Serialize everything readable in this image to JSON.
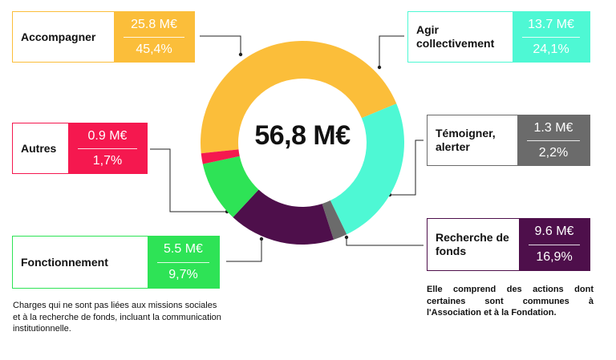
{
  "chart_data": {
    "type": "pie",
    "total_label": "56,8 M€",
    "slices": [
      {
        "name": "Accompagner",
        "amount_label": "25.8 M€",
        "percent_label": "45,4%",
        "percent": 45.4,
        "color": "#FBBE3A"
      },
      {
        "name": "Agir collectivement",
        "amount_label": "13.7 M€",
        "percent_label": "24,1%",
        "percent": 24.1,
        "color": "#4EF8D4"
      },
      {
        "name": "Témoigner, alerter",
        "amount_label": "1.3 M€",
        "percent_label": "2,2%",
        "percent": 2.2,
        "color": "#6B6B6B"
      },
      {
        "name": "Recherche de fonds",
        "amount_label": "9.6 M€",
        "percent_label": "16,9%",
        "percent": 16.9,
        "color": "#4E0F4B"
      },
      {
        "name": "Fonctionnement",
        "amount_label": "5.5 M€",
        "percent_label": "9,7%",
        "percent": 9.7,
        "color": "#2EE356"
      },
      {
        "name": "Autres",
        "amount_label": "0.9 M€",
        "percent_label": "1,7%",
        "percent": 1.7,
        "color": "#F5184F"
      }
    ]
  },
  "notes": {
    "fonctionnement": "Charges qui ne sont pas liées aux missions sociales et à la recherche de fonds, incluant la communication institutionnelle.",
    "recherche": "Elle comprend des actions dont certaines sont communes à l'Association et à la Fondation."
  }
}
